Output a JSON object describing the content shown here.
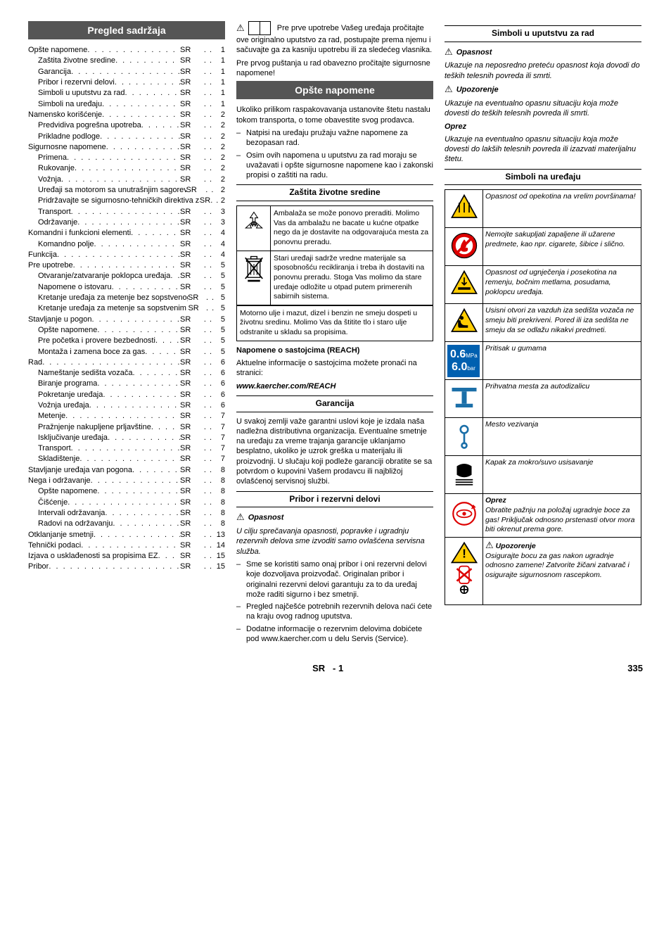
{
  "toc": {
    "title": "Pregled sadržaja",
    "lang": "SR",
    "items": [
      {
        "label": "Opšte napomene",
        "page": "1",
        "indent": 0
      },
      {
        "label": "Zaštita životne sredine",
        "page": "1",
        "indent": 1
      },
      {
        "label": "Garancija",
        "page": "1",
        "indent": 1
      },
      {
        "label": "Pribor i rezervni delovi",
        "page": "1",
        "indent": 1
      },
      {
        "label": "Simboli u uputstvu za rad",
        "page": "1",
        "indent": 1
      },
      {
        "label": "Simboli na uređaju",
        "page": "1",
        "indent": 1
      },
      {
        "label": "Namensko korišćenje",
        "page": "2",
        "indent": 0
      },
      {
        "label": "Predvidiva pogrešna upotreba",
        "page": "2",
        "indent": 1
      },
      {
        "label": "Prikladne podloge",
        "page": "2",
        "indent": 1
      },
      {
        "label": "Sigurnosne napomene",
        "page": "2",
        "indent": 0
      },
      {
        "label": "Primena",
        "page": "2",
        "indent": 1
      },
      {
        "label": "Rukovanje",
        "page": "2",
        "indent": 1
      },
      {
        "label": "Vožnja",
        "page": "2",
        "indent": 1
      },
      {
        "label": "Uređaji sa motorom sa unutrašnjim sagorevanjem",
        "page": "2",
        "indent": 1
      },
      {
        "label": "Pridržavajte se sigurnosno-tehničkih direktiva za motorna vozila na tečni gas (samo motori na gas)",
        "page": "2",
        "indent": 1
      },
      {
        "label": "Transport",
        "page": "3",
        "indent": 1
      },
      {
        "label": "Održavanje",
        "page": "3",
        "indent": 1
      },
      {
        "label": "Komandni i funkcioni elementi",
        "page": "4",
        "indent": 0
      },
      {
        "label": "Komandno polje",
        "page": "4",
        "indent": 1
      },
      {
        "label": "Funkcija",
        "page": "4",
        "indent": 0
      },
      {
        "label": "Pre upotrebe",
        "page": "5",
        "indent": 0
      },
      {
        "label": "Otvaranje/zatvaranje poklopca uređaja",
        "page": "5",
        "indent": 1
      },
      {
        "label": "Napomene o istovaru",
        "page": "5",
        "indent": 1
      },
      {
        "label": "Kretanje uređaja za metenje bez sopstvenog pogona",
        "page": "5",
        "indent": 1
      },
      {
        "label": "Kretanje uređaja za metenje sa sopstvenim pogonom",
        "page": "5",
        "indent": 1
      },
      {
        "label": "Stavljanje u pogon",
        "page": "5",
        "indent": 0
      },
      {
        "label": "Opšte napomene",
        "page": "5",
        "indent": 1
      },
      {
        "label": "Pre početka i provere bezbednosti",
        "page": "5",
        "indent": 1
      },
      {
        "label": "Montaža i zamena boce za gas",
        "page": "5",
        "indent": 1
      },
      {
        "label": "Rad",
        "page": "6",
        "indent": 0
      },
      {
        "label": "Nameštanje sedišta vozača",
        "page": "6",
        "indent": 1
      },
      {
        "label": "Biranje programa",
        "page": "6",
        "indent": 1
      },
      {
        "label": "Pokretanje uređaja",
        "page": "6",
        "indent": 1
      },
      {
        "label": "Vožnja uređaja",
        "page": "6",
        "indent": 1
      },
      {
        "label": "Metenje",
        "page": "7",
        "indent": 1
      },
      {
        "label": "Pražnjenje nakupljene prljavštine",
        "page": "7",
        "indent": 1
      },
      {
        "label": "Isključivanje uređaja",
        "page": "7",
        "indent": 1
      },
      {
        "label": "Transport",
        "page": "7",
        "indent": 1
      },
      {
        "label": "Skladištenje",
        "page": "7",
        "indent": 1
      },
      {
        "label": "Stavljanje uređaja van pogona",
        "page": "8",
        "indent": 0
      },
      {
        "label": "Nega i održavanje",
        "page": "8",
        "indent": 0
      },
      {
        "label": "Opšte napomene",
        "page": "8",
        "indent": 1
      },
      {
        "label": "Čišćenje",
        "page": "8",
        "indent": 1
      },
      {
        "label": "Intervali održavanja",
        "page": "8",
        "indent": 1
      },
      {
        "label": "Radovi na održavanju",
        "page": "8",
        "indent": 1
      },
      {
        "label": "Otklanjanje smetnji",
        "page": "13",
        "indent": 0
      },
      {
        "label": "Tehnički podaci",
        "page": "14",
        "indent": 0
      },
      {
        "label": "Izjava o usklađenosti sa propisima EZ",
        "page": "15",
        "indent": 0
      },
      {
        "label": "Pribor",
        "page": "15",
        "indent": 0
      }
    ]
  },
  "col2": {
    "intro1": "Pre prve upotrebe Vašeg uređaja pročitajte ove originalno uputstvo za rad, postupajte prema njemu i sačuvajte ga za kasniju upotrebu ili za sledećeg vlasnika.",
    "intro2": "Pre prvog puštanja u rad obavezno pročitajte sigurnosne napomene!",
    "general_heading": "Opšte napomene",
    "general_p": "Ukoliko prilikom raspakovavanja ustanovite štetu nastalu tokom transporta, o tome obavestite svog prodavca.",
    "general_bullets": [
      "Natpisi na uređaju pružaju važne napomene za bezopasan rad.",
      "Osim ovih napomena u uputstvu za rad moraju se uvažavati i opšte sigurnosne napomene kao i zakonski propisi o zaštiti na radu."
    ],
    "env_heading": "Zaštita životne sredine",
    "env_table": [
      {
        "icon": "recycle",
        "text": "Ambalaža se može ponovo preraditi. Molimo Vas da ambalažu ne bacate u kućne otpatke nego da je dostavite na odgovarajuća mesta za ponovnu preradu."
      },
      {
        "icon": "bin",
        "text": "Stari uređaji sadrže vredne materijale sa sposobnošću recikliranja i treba ih dostaviti na ponovnu preradu. Stoga Vas molimo da stare uređaje odložite u otpad putem primerenih sabirnih sistema."
      }
    ],
    "env_note": "Motorno ulje i mazut, dizel i benzin ne smeju dospeti u životnu sredinu. Molimo Vas da štitite tlo i staro ulje odstranite u skladu sa propisima.",
    "reach_title": "Napomene o sastojcima (REACH)",
    "reach_p": "Aktuelne informacije o sastojcima možete pronaći na stranici:",
    "reach_url": "www.kaercher.com/REACH",
    "warranty_heading": "Garancija",
    "warranty_p": "U svakoj zemlji važe garantni uslovi koje je izdala naša nadležna distributivna organizacija. Eventualne smetnje na uređaju za vreme trajanja garancije uklanjamo besplatno, ukoliko je uzrok greška u materijalu ili proizvodnji. U slučaju koji podleže garanciji obratite se sa potvrdom o kupovini Vašem prodavcu ili najbližoj ovlašćenoj servisnoj službi.",
    "parts_heading": "Pribor i rezervni delovi",
    "danger_label": "Opasnost",
    "parts_danger": "U cilju sprečavanja opasnosti, popravke i ugradnju rezervnih delova sme izvoditi samo ovlašćena servisna služba.",
    "parts_bullets": [
      "Sme se koristiti samo onaj pribor i oni rezervni delovi koje dozvoljava proizvođač. Originalan pribor i originalni rezervni delovi garantuju za to da uređaj može raditi sigurno i bez smetnji.",
      "Pregled najčešće potrebnih rezervnih delova naći ćete na kraju ovog radnog uputstva.",
      "Dodatne informacije o rezervnim delovima dobićete pod www.kaercher.com u delu Servis (Service)."
    ]
  },
  "col3": {
    "symbols_manual_heading": "Simboli u uputstvu za rad",
    "danger_label": "Opasnost",
    "danger_text": "Ukazuje na neposredno preteću opasnost koja dovodi do teških telesnih povreda ili smrti.",
    "warning_label": "Upozorenje",
    "warning_text": "Ukazuje na eventualno opasnu situaciju koja može dovesti do teških telesnih povreda ili smrti.",
    "caution_label": "Oprez",
    "caution_text": "Ukazuje na eventualno opasnu situaciju koja može dovesti do lakših telesnih povreda ili izazvati materijalnu štetu.",
    "symbols_device_heading": "Simboli na uređaju",
    "device_symbols": [
      {
        "icon": "hot",
        "text": "Opasnost od opekotina na vrelim površinama!",
        "italic": true
      },
      {
        "icon": "flame",
        "text": "Nemojte sakupljati zapaljene ili užarene predmete, kao npr. cigarete, šibice i slično.",
        "italic": true
      },
      {
        "icon": "crush",
        "text": "Opasnost od ugnječenja i posekotina na remenju, bočnim metlama, posudama, poklopcu uređaja.",
        "italic": true
      },
      {
        "icon": "seat",
        "text": "Usisni otvori za vazduh iza sedišta vozača ne smeju biti prekriveni. Pored ili iza sedišta ne smeju da se odlažu nikakvi predmeti.",
        "italic": true
      },
      {
        "icon": "pressure",
        "text": "Pritisak u gumama",
        "italic": true
      },
      {
        "icon": "jack",
        "text": "Prihvatna mesta za autodizalicu",
        "italic": true
      },
      {
        "icon": "tie",
        "text": "Mesto vezivanja",
        "italic": true
      },
      {
        "icon": "flap",
        "text": "Kapak za mokro/suvo usisavanje",
        "italic": true
      },
      {
        "icon": "gas1",
        "text_title": "Oprez",
        "text": "Obratite pažnju na položaj ugradnje boce za gas! Priključak odnosno prstenasti otvor mora biti okrenut prema gore.",
        "italic": true
      },
      {
        "icon": "gas2",
        "text_title_tri": "Upozorenje",
        "text": "Osigurajte bocu za gas nakon ugradnje odnosno zamene! Zatvorite žičani zatvarač i osigurajte sigurnosnom rascepkom.",
        "italic": true
      }
    ]
  },
  "footer": {
    "center_lang": "SR",
    "center_page": "1",
    "right_page": "335"
  }
}
